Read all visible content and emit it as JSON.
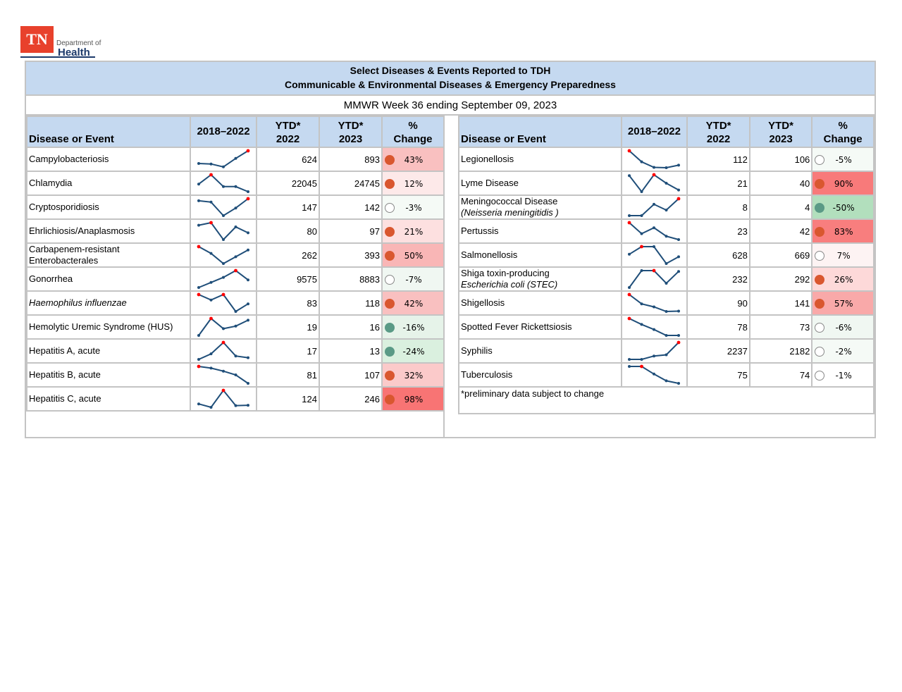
{
  "logo": {
    "mark": "TN",
    "line1": "Department of",
    "line2": "Health"
  },
  "header": {
    "title_line1": "Select Diseases & Events Reported to TDH",
    "title_line2": "Communicable & Environmental Diseases & Emergency Preparedness",
    "week": "MMWR Week 36 ending September 09, 2023"
  },
  "columns": {
    "disease": "Disease or Event",
    "trend": "2018–2022",
    "ytd2022_a": "YTD*",
    "ytd2022_b": "2022",
    "ytd2023_a": "YTD*",
    "ytd2023_b": "2023",
    "change_a": "%",
    "change_b": "Change"
  },
  "colors": {
    "header_bg": "#c5d9f0",
    "border": "#c4c4c4",
    "spark_line": "#1f4e79",
    "spark_max": "#ff0000",
    "dot_increase": "#d9572f",
    "dot_decrease": "#5a9a86",
    "dot_neutral": "#ffffff"
  },
  "left_rows": [
    {
      "name": "Campylobacteriosis",
      "italic": false,
      "ytd2022": "624",
      "ytd2023": "893",
      "change": "43%",
      "status": "up",
      "bg": "#f9c0c0",
      "spark": [
        0.25,
        0.22,
        0.05,
        0.55,
        1.0
      ],
      "max": [
        4
      ]
    },
    {
      "name": "Chlamydia",
      "italic": false,
      "ytd2022": "22045",
      "ytd2023": "24745",
      "change": "12%",
      "status": "up",
      "bg": "#fde9e9",
      "spark": [
        0.45,
        1.0,
        0.3,
        0.3,
        0.0
      ],
      "max": [
        1
      ]
    },
    {
      "name": "Cryptosporidiosis",
      "italic": false,
      "ytd2022": "147",
      "ytd2023": "142",
      "change": "-3%",
      "status": "neutral",
      "bg": "#f5faf6",
      "spark": [
        0.88,
        0.8,
        0.0,
        0.45,
        1.0
      ],
      "max": [
        4
      ]
    },
    {
      "name": "Ehrlichiosis/Anaplasmosis",
      "italic": false,
      "ytd2022": "80",
      "ytd2023": "97",
      "change": "21%",
      "status": "up",
      "bg": "#fde0e0",
      "spark": [
        0.85,
        1.0,
        0.0,
        0.75,
        0.4
      ],
      "max": [
        1
      ]
    },
    {
      "name": "Carbapenem-resistant Enterobacterales",
      "italic": false,
      "ytd2022": "262",
      "ytd2023": "393",
      "change": "50%",
      "status": "up",
      "bg": "#f9b6b6",
      "spark": [
        1.0,
        0.6,
        0.0,
        0.4,
        0.8
      ],
      "max": [
        0
      ]
    },
    {
      "name": "Gonorrhea",
      "italic": false,
      "ytd2022": "9575",
      "ytd2023": "8883",
      "change": "-7%",
      "status": "neutral",
      "bg": "#f0f7f2",
      "spark": [
        0.0,
        0.3,
        0.6,
        1.0,
        0.45
      ],
      "max": [
        3
      ]
    },
    {
      "name": "Haemophilus influenzae",
      "italic": true,
      "ytd2022": "83",
      "ytd2023": "118",
      "change": "42%",
      "status": "up",
      "bg": "#f9c0c0",
      "spark": [
        1.0,
        0.68,
        1.0,
        0.0,
        0.45
      ],
      "max": [
        0,
        2
      ]
    },
    {
      "name": "Hemolytic Uremic Syndrome (HUS)",
      "italic": false,
      "ytd2022": "19",
      "ytd2023": "16",
      "change": "-16%",
      "status": "down",
      "bg": "#e6f3e9",
      "spark": [
        0.0,
        1.0,
        0.4,
        0.55,
        0.9
      ],
      "max": [
        1
      ]
    },
    {
      "name": "Hepatitis A, acute",
      "italic": false,
      "ytd2022": "17",
      "ytd2023": "13",
      "change": "-24%",
      "status": "down",
      "bg": "#daf0df",
      "spark": [
        0.0,
        0.33,
        1.0,
        0.2,
        0.1
      ],
      "max": [
        2
      ]
    },
    {
      "name": "Hepatitis B, acute",
      "italic": false,
      "ytd2022": "81",
      "ytd2023": "107",
      "change": "32%",
      "status": "up",
      "bg": "#fbcaca",
      "spark": [
        1.0,
        0.9,
        0.72,
        0.5,
        0.0
      ],
      "max": [
        0
      ]
    },
    {
      "name": "Hepatitis C, acute",
      "italic": false,
      "ytd2022": "124",
      "ytd2023": "246",
      "change": "98%",
      "status": "up",
      "bg": "#f87474",
      "spark": [
        0.2,
        0.0,
        1.0,
        0.1,
        0.12
      ],
      "max": [
        2
      ]
    }
  ],
  "right_rows": [
    {
      "name": "Legionellosis",
      "italic": false,
      "ytd2022": "112",
      "ytd2023": "106",
      "change": "-5%",
      "status": "neutral",
      "bg": "#f5faf6",
      "spark": [
        1.0,
        0.35,
        0.02,
        0.0,
        0.15
      ],
      "max": [
        0
      ]
    },
    {
      "name": "Lyme Disease",
      "italic": false,
      "ytd2022": "21",
      "ytd2023": "40",
      "change": "90%",
      "status": "up",
      "bg": "#f87a7a",
      "spark": [
        0.95,
        0.0,
        1.0,
        0.5,
        0.1
      ],
      "max": [
        2
      ]
    },
    {
      "name": "Meningococcal Disease",
      "name2": "(Neisseria meningitidis )",
      "italic": false,
      "ytd2022": "8",
      "ytd2023": "4",
      "change": "-50%",
      "status": "down",
      "bg": "#b2dfbd",
      "spark": [
        0.0,
        0.0,
        0.67,
        0.33,
        1.0
      ],
      "max": [
        4
      ]
    },
    {
      "name": "Pertussis",
      "italic": false,
      "ytd2022": "23",
      "ytd2023": "42",
      "change": "83%",
      "status": "up",
      "bg": "#f87e7e",
      "spark": [
        1.0,
        0.35,
        0.7,
        0.2,
        0.0
      ],
      "max": [
        0
      ]
    },
    {
      "name": "Salmonellosis",
      "italic": false,
      "ytd2022": "628",
      "ytd2023": "669",
      "change": "7%",
      "status": "neutral",
      "bg": "#fdf3f3",
      "spark": [
        0.55,
        1.0,
        1.0,
        0.0,
        0.4
      ],
      "max": [
        1
      ]
    },
    {
      "name": "Shiga toxin-producing",
      "name2": "Escherichia coli  (STEC)",
      "italic": false,
      "ytd2022": "232",
      "ytd2023": "292",
      "change": "26%",
      "status": "up",
      "bg": "#fdd9d9",
      "spark": [
        0.0,
        1.0,
        1.0,
        0.25,
        0.95
      ],
      "max": [
        2
      ]
    },
    {
      "name": "Shigellosis",
      "italic": false,
      "ytd2022": "90",
      "ytd2023": "141",
      "change": "57%",
      "status": "up",
      "bg": "#f9a9a9",
      "spark": [
        1.0,
        0.45,
        0.27,
        0.0,
        0.02
      ],
      "max": [
        0
      ]
    },
    {
      "name": "Spotted Fever Rickettsiosis",
      "italic": false,
      "ytd2022": "78",
      "ytd2023": "73",
      "change": "-6%",
      "status": "neutral",
      "bg": "#f0f7f2",
      "spark": [
        1.0,
        0.65,
        0.35,
        0.0,
        0.0
      ],
      "max": [
        0
      ]
    },
    {
      "name": "Syphilis",
      "italic": false,
      "ytd2022": "2237",
      "ytd2023": "2182",
      "change": "-2%",
      "status": "neutral",
      "bg": "#f5faf6",
      "spark": [
        0.0,
        0.0,
        0.2,
        0.27,
        1.0
      ],
      "max": [
        4
      ]
    },
    {
      "name": "Tuberculosis",
      "italic": false,
      "ytd2022": "75",
      "ytd2023": "74",
      "change": "-1%",
      "status": "neutral",
      "bg": "#ffffff",
      "spark": [
        1.0,
        1.0,
        0.55,
        0.15,
        0.0
      ],
      "max": [
        1
      ]
    }
  ],
  "footnote": "*preliminary data subject to change"
}
